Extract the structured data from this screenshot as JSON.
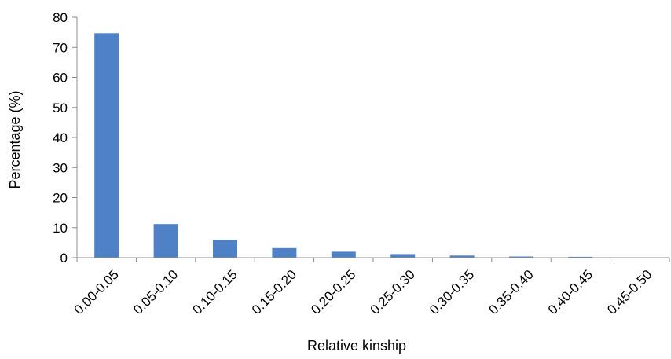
{
  "chart_data": {
    "type": "bar",
    "categories": [
      "0.00-0.05",
      "0.05-0.10",
      "0.10-0.15",
      "0.15-0.20",
      "0.20-0.25",
      "0.25-0.30",
      "0.30-0.35",
      "0.35-0.40",
      "0.40-0.45",
      "0.45-0.50"
    ],
    "values": [
      74.7,
      11.2,
      6.0,
      3.2,
      2.0,
      1.2,
      0.7,
      0.4,
      0.3,
      0.1
    ],
    "xlabel": "Relative kinship",
    "ylabel": "Percentage (%)",
    "ylim": [
      0,
      80
    ],
    "yticks": [
      0,
      10,
      20,
      30,
      40,
      50,
      60,
      70,
      80
    ],
    "grid": false,
    "legend": "none",
    "bar_color": "#4F81C7",
    "axis_color": "#8C8C8C"
  }
}
